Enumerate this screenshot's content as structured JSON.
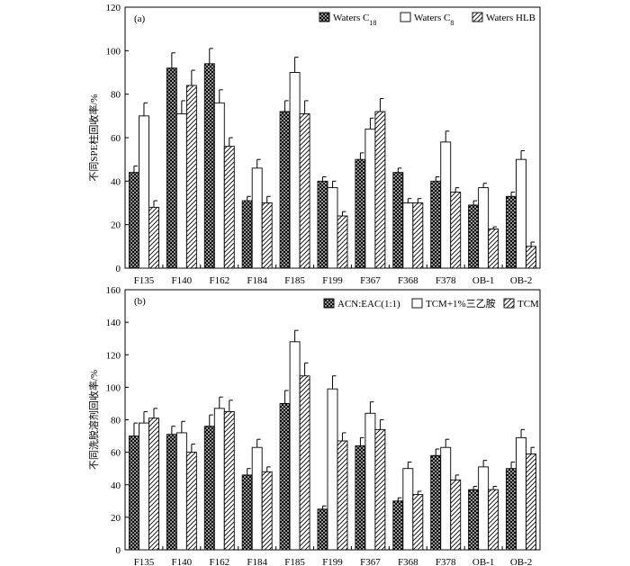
{
  "chart_data": [
    {
      "type": "bar",
      "panel_label": "(a)",
      "ylabel": "不同SPE柱回收率/%",
      "ylim": [
        0,
        120
      ],
      "yticks": [
        0,
        20,
        40,
        60,
        80,
        100,
        120
      ],
      "categories": [
        "F135",
        "F140",
        "F162",
        "F184",
        "F185",
        "F199",
        "F367",
        "F368",
        "F378",
        "OB-1",
        "OB-2"
      ],
      "series": [
        {
          "name": "Waters C18",
          "name_base": "Waters C",
          "name_sub": "18",
          "pattern": "crosshatch",
          "values": [
            44,
            92,
            94,
            31,
            72,
            40,
            50,
            44,
            40,
            29,
            33
          ],
          "errors": [
            3,
            7,
            7,
            2,
            5,
            2,
            3,
            2,
            2,
            2,
            2
          ]
        },
        {
          "name": "Waters C8",
          "name_base": "Waters C",
          "name_sub": "8",
          "pattern": "none",
          "values": [
            70,
            71,
            76,
            46,
            90,
            37,
            64,
            30,
            58,
            37,
            50
          ],
          "errors": [
            6,
            6,
            6,
            4,
            7,
            3,
            5,
            2,
            5,
            2,
            4
          ]
        },
        {
          "name": "Waters HLB",
          "name_base": "Waters HLB",
          "name_sub": "",
          "pattern": "diagonal",
          "values": [
            28,
            84,
            56,
            30,
            71,
            24,
            72,
            30,
            35,
            18,
            10
          ],
          "errors": [
            3,
            7,
            4,
            3,
            6,
            2,
            6,
            2,
            2,
            1,
            2
          ]
        }
      ],
      "legend_position": "top-right",
      "grid": false
    },
    {
      "type": "bar",
      "panel_label": "(b)",
      "ylabel": "不同洗脱溶剂回收率/%",
      "ylim": [
        0,
        160
      ],
      "yticks": [
        0,
        20,
        40,
        60,
        80,
        100,
        120,
        140,
        160
      ],
      "categories": [
        "F135",
        "F140",
        "F162",
        "F184",
        "F185",
        "F199",
        "F367",
        "F368",
        "F378",
        "OB-1",
        "OB-2"
      ],
      "series": [
        {
          "name": "ACN:EAC(1:1)",
          "name_base": "ACN:EAC(1:1)",
          "name_sub": "",
          "pattern": "crosshatch",
          "values": [
            70,
            71,
            76,
            46,
            90,
            25,
            64,
            30,
            58,
            37,
            50
          ],
          "errors": [
            8,
            5,
            7,
            4,
            8,
            2,
            5,
            2,
            4,
            2,
            4
          ]
        },
        {
          "name": "TCM+1%三乙胺",
          "name_base": "TCM+1%三乙胺",
          "name_sub": "",
          "pattern": "none",
          "values": [
            78,
            72,
            87,
            63,
            128,
            99,
            84,
            50,
            63,
            51,
            69
          ],
          "errors": [
            7,
            7,
            7,
            5,
            7,
            8,
            7,
            4,
            5,
            4,
            5
          ]
        },
        {
          "name": "TCM",
          "name_base": "TCM",
          "name_sub": "",
          "pattern": "diagonal",
          "values": [
            81,
            60,
            85,
            48,
            107,
            67,
            74,
            34,
            43,
            37,
            59
          ],
          "errors": [
            6,
            5,
            7,
            3,
            8,
            5,
            6,
            2,
            3,
            2,
            4
          ]
        }
      ],
      "legend_position": "top-right",
      "grid": false
    }
  ]
}
